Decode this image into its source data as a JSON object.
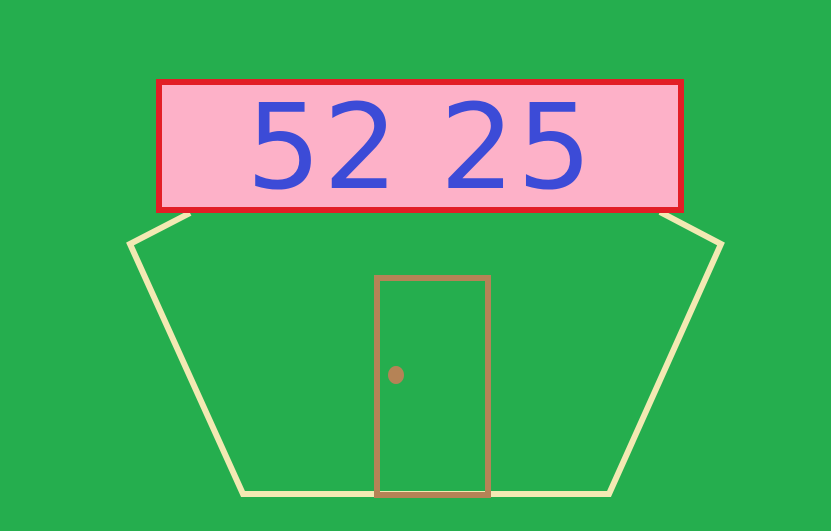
{
  "scene": {
    "sign": {
      "text": "52 25"
    }
  },
  "colors": {
    "background": "#25AE4E",
    "building_outline": "#F3E9B3",
    "sign_fill": "#FDB1C8",
    "sign_border": "#E21E26",
    "sign_text": "#3C4BD7",
    "door_frame": "#B58356",
    "door_knob": "#B58356"
  }
}
